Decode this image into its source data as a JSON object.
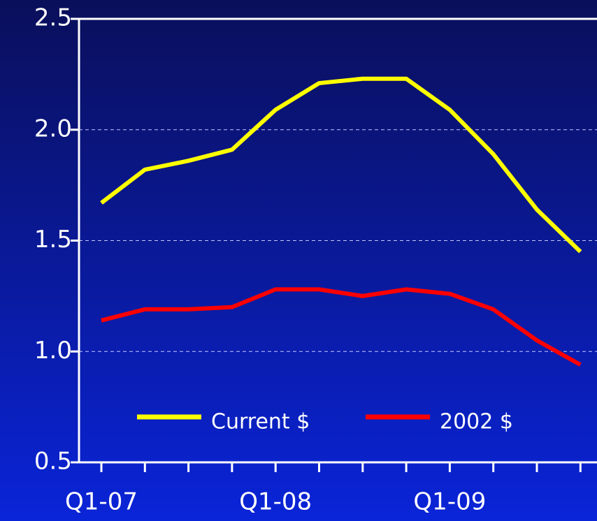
{
  "chart_data": {
    "type": "line",
    "categories": [
      "Q1-07",
      null,
      null,
      null,
      "Q1-08",
      null,
      null,
      null,
      "Q1-09",
      null,
      null,
      null
    ],
    "series": [
      {
        "name": "Current $",
        "color": "#ffff00",
        "values": [
          1.67,
          1.82,
          1.86,
          1.91,
          2.09,
          2.21,
          2.23,
          2.23,
          2.09,
          1.89,
          1.64,
          1.45
        ]
      },
      {
        "name": "2002 $",
        "color": "#ff0000",
        "values": [
          1.14,
          1.19,
          1.19,
          1.2,
          1.28,
          1.28,
          1.25,
          1.28,
          1.26,
          1.19,
          1.05,
          0.94
        ]
      }
    ],
    "ylim": [
      0.5,
      2.5
    ],
    "yticks": [
      {
        "value": 0.5,
        "label": "0.5"
      },
      {
        "value": 1,
        "label": "1.0"
      },
      {
        "value": 1.5,
        "label": "1.5"
      },
      {
        "value": 2,
        "label": "2.0"
      },
      {
        "value": 2.5,
        "label": "2.5"
      }
    ],
    "grid": true,
    "legend": "bottom"
  }
}
